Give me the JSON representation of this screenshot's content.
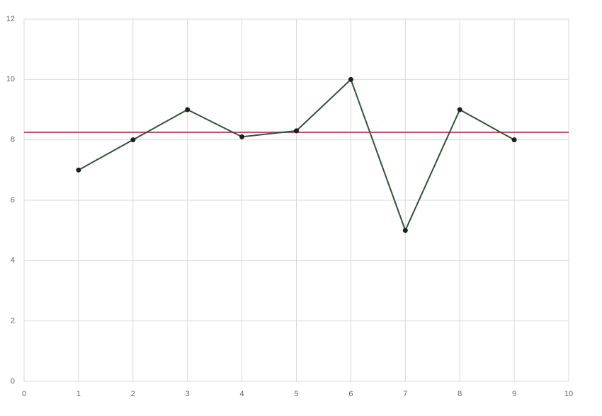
{
  "chart_data": {
    "type": "line",
    "x": [
      1,
      2,
      3,
      4,
      5,
      6,
      7,
      8,
      9
    ],
    "series": [
      {
        "color": "#2f5336",
        "marker_color": "#1e1e1e",
        "values": [
          7,
          8,
          9,
          8.1,
          8.3,
          10,
          5,
          9,
          8
        ]
      }
    ],
    "reference_line": {
      "value": 8.25,
      "color": "#c0506e"
    },
    "xlim": [
      0,
      10
    ],
    "xticks": [
      0,
      1,
      2,
      3,
      4,
      5,
      6,
      7,
      8,
      9,
      10
    ],
    "ylim": [
      0,
      12
    ],
    "yticks": [
      0,
      2,
      4,
      6,
      8,
      10,
      12
    ],
    "grid": true
  }
}
